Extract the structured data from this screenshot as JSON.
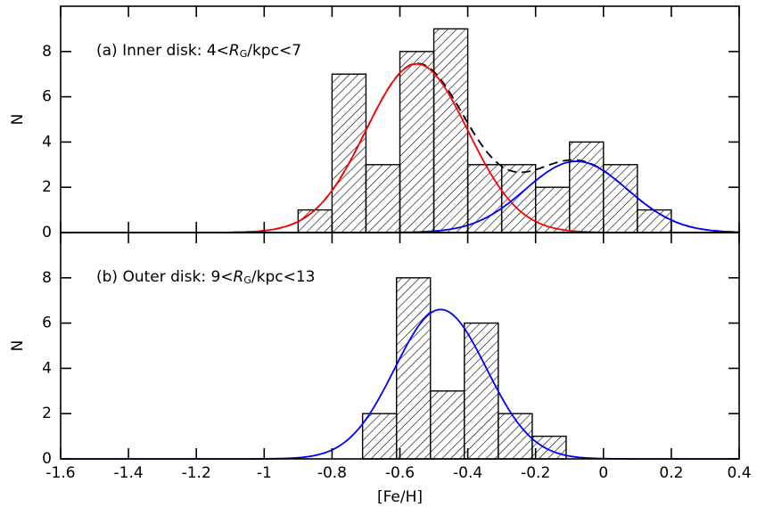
{
  "chart_data": [
    {
      "type": "histogram",
      "bins": [
        -0.9,
        -0.8,
        -0.7,
        -0.6,
        -0.5,
        -0.4,
        -0.3,
        -0.2,
        -0.1,
        0,
        0.1,
        0.2
      ],
      "counts": [
        1,
        7,
        3,
        8,
        9,
        3,
        3,
        2,
        4,
        3,
        1
      ],
      "color": "#000000",
      "hatch": true,
      "xlim": [
        -1.6,
        0.4
      ],
      "ylim": [
        0,
        10
      ],
      "xticks": [
        -1.6,
        -1.4,
        -1.2,
        -1,
        -0.8,
        -0.6,
        -0.4,
        -0.2,
        0,
        0.2,
        0.4
      ],
      "yticks": [
        0,
        2,
        4,
        6,
        8
      ],
      "show_xtick_labels": false,
      "ylabel": "N",
      "annotation": [
        "(a) Inner disk: 4<",
        "R",
        "G",
        "/kpc<7"
      ],
      "curves": [
        {
          "color": "#ff0000",
          "amplitude": 7.45,
          "mean": -0.55,
          "sigma": 0.15
        },
        {
          "color": "#0000ff",
          "amplitude": 3.15,
          "mean": -0.08,
          "sigma": 0.15
        }
      ],
      "sum_curve": {
        "color": "#000000",
        "dashed": true
      }
    },
    {
      "type": "histogram",
      "bins": [
        -0.71,
        -0.61,
        -0.51,
        -0.41,
        -0.31,
        -0.21,
        -0.11
      ],
      "counts": [
        2,
        8,
        3,
        6,
        2,
        1
      ],
      "color": "#000000",
      "hatch": true,
      "xlim": [
        -1.6,
        0.4
      ],
      "ylim": [
        0,
        10
      ],
      "xticks": [
        -1.6,
        -1.4,
        -1.2,
        -1,
        -0.8,
        -0.6,
        -0.4,
        -0.2,
        0,
        0.2,
        0.4
      ],
      "yticks": [
        0,
        2,
        4,
        6,
        8
      ],
      "show_xtick_labels": true,
      "xlabel": "[Fe/H]",
      "ylabel": "N",
      "annotation": [
        "(b) Outer disk: 9<",
        "R",
        "G",
        "/kpc<13"
      ],
      "curves": [
        {
          "color": "#0000ff",
          "amplitude": 6.6,
          "mean": -0.48,
          "sigma": 0.135
        }
      ]
    }
  ]
}
